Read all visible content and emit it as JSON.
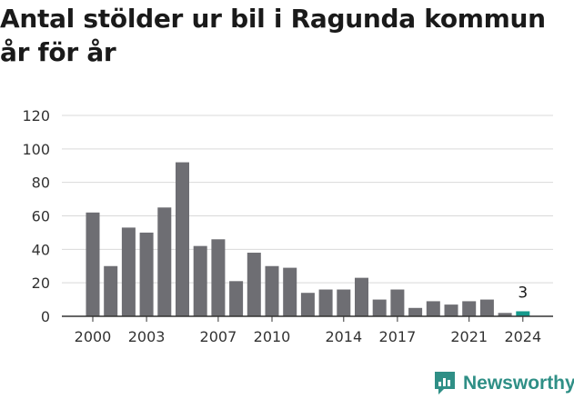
{
  "title": "Antal stölder ur bil i Ragunda kommun år för år",
  "brand": {
    "name": "Newsworthy",
    "icon": "newsworthy-logo-icon"
  },
  "colors": {
    "bar": "#6e6e73",
    "highlight": "#159a8c",
    "grid": "#d9d9d9",
    "axis": "#333333",
    "brand": "#2f8f86"
  },
  "chart_data": {
    "type": "bar",
    "title": "Antal stölder ur bil i Ragunda kommun år för år",
    "xlabel": "",
    "ylabel": "",
    "x": [
      2000,
      2001,
      2002,
      2003,
      2004,
      2005,
      2006,
      2007,
      2008,
      2009,
      2010,
      2011,
      2012,
      2013,
      2014,
      2015,
      2016,
      2017,
      2018,
      2019,
      2020,
      2021,
      2022,
      2023,
      2024
    ],
    "values": [
      62,
      30,
      53,
      50,
      65,
      92,
      42,
      46,
      21,
      38,
      30,
      29,
      14,
      16,
      16,
      23,
      10,
      16,
      5,
      9,
      7,
      9,
      10,
      2,
      3
    ],
    "ylim": [
      0,
      120
    ],
    "yticks": [
      0,
      20,
      40,
      60,
      80,
      100,
      120
    ],
    "xtick_labels": [
      "2000",
      "2003",
      "2007",
      "2010",
      "2014",
      "2017",
      "2021",
      "2024"
    ],
    "highlight": {
      "x": 2024,
      "label": "3"
    },
    "grid": "horizontal",
    "legend": "none"
  }
}
